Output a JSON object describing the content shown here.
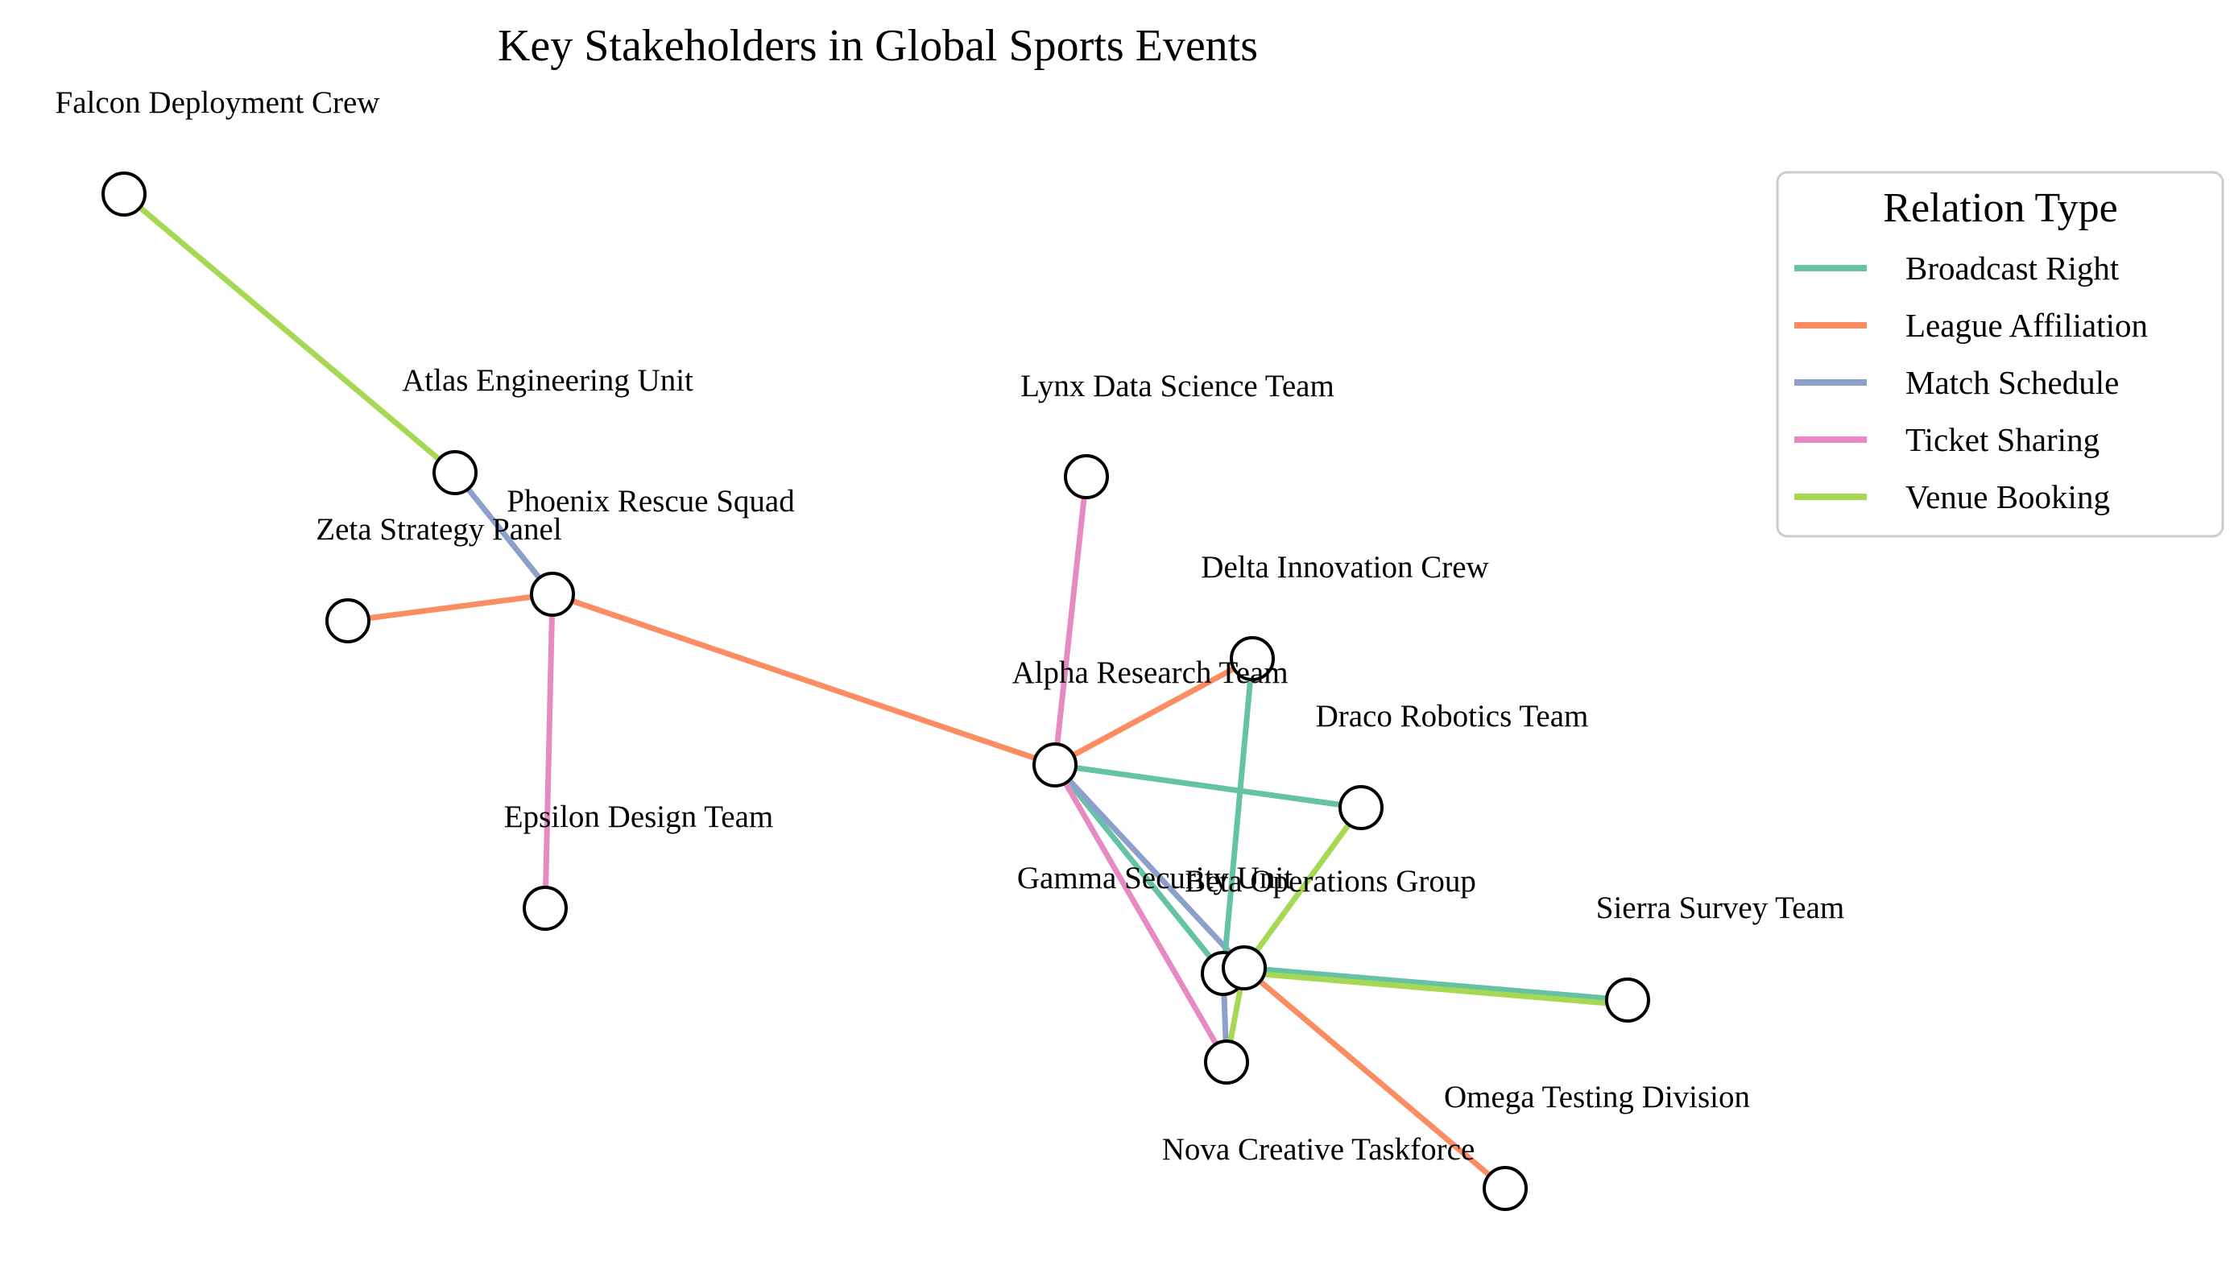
{
  "diagram": {
    "title": "Key Stakeholders in Global Sports Events",
    "nodes": [
      {
        "id": "falcon",
        "label": "Falcon Deployment Crew"
      },
      {
        "id": "atlas",
        "label": "Atlas Engineering Unit"
      },
      {
        "id": "phoenix",
        "label": "Phoenix Rescue Squad"
      },
      {
        "id": "zeta",
        "label": "Zeta Strategy Panel"
      },
      {
        "id": "epsilon",
        "label": "Epsilon Design Team"
      },
      {
        "id": "lynx",
        "label": "Lynx Data Science Team"
      },
      {
        "id": "delta",
        "label": "Delta Innovation Crew"
      },
      {
        "id": "alpha",
        "label": "Alpha Research Team"
      },
      {
        "id": "draco",
        "label": "Draco Robotics Team"
      },
      {
        "id": "gamma",
        "label": "Gamma Security Unit"
      },
      {
        "id": "beta",
        "label": "Beta Operations Group"
      },
      {
        "id": "sierra",
        "label": "Sierra Survey Team"
      },
      {
        "id": "omega",
        "label": "Omega Testing Division"
      },
      {
        "id": "nova",
        "label": "Nova Creative Taskforce"
      }
    ],
    "edges": [
      {
        "source": "falcon",
        "target": "atlas",
        "relation": "Venue Booking"
      },
      {
        "source": "atlas",
        "target": "phoenix",
        "relation": "Match Schedule"
      },
      {
        "source": "zeta",
        "target": "phoenix",
        "relation": "League Affiliation"
      },
      {
        "source": "phoenix",
        "target": "epsilon",
        "relation": "Ticket Sharing"
      },
      {
        "source": "phoenix",
        "target": "alpha",
        "relation": "League Affiliation"
      },
      {
        "source": "lynx",
        "target": "alpha",
        "relation": "Ticket Sharing"
      },
      {
        "source": "alpha",
        "target": "delta",
        "relation": "League Affiliation"
      },
      {
        "source": "alpha",
        "target": "draco",
        "relation": "Broadcast Right"
      },
      {
        "source": "alpha",
        "target": "gamma",
        "relation": "Broadcast Right"
      },
      {
        "source": "alpha",
        "target": "beta",
        "relation": "Match Schedule"
      },
      {
        "source": "alpha",
        "target": "nova",
        "relation": "Ticket Sharing"
      },
      {
        "source": "delta",
        "target": "gamma",
        "relation": "Broadcast Right"
      },
      {
        "source": "draco",
        "target": "beta",
        "relation": "Venue Booking"
      },
      {
        "source": "beta",
        "target": "sierra",
        "relation": "Broadcast Right"
      },
      {
        "source": "beta",
        "target": "sierra",
        "relation": "Venue Booking"
      },
      {
        "source": "beta",
        "target": "omega",
        "relation": "League Affiliation"
      },
      {
        "source": "gamma",
        "target": "nova",
        "relation": "Match Schedule"
      },
      {
        "source": "beta",
        "target": "nova",
        "relation": "Venue Booking"
      }
    ],
    "legend": {
      "title": "Relation Type",
      "items": [
        {
          "label": "Broadcast Right",
          "color": "#66c2a5"
        },
        {
          "label": "League Affiliation",
          "color": "#fc8d62"
        },
        {
          "label": "Match Schedule",
          "color": "#8da0cb"
        },
        {
          "label": "Ticket Sharing",
          "color": "#e78ac3"
        },
        {
          "label": "Venue Booking",
          "color": "#a6d854"
        }
      ]
    }
  }
}
